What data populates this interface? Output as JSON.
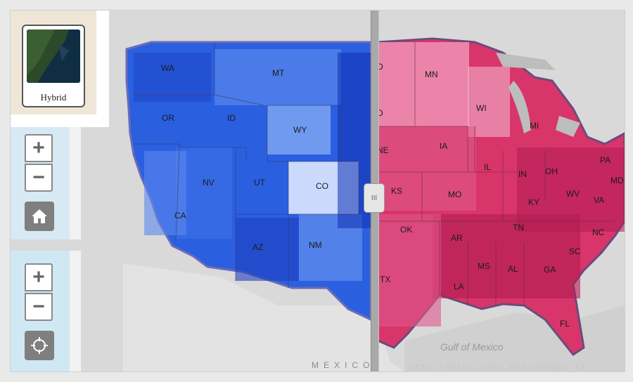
{
  "basemap_toggle": {
    "label": "Hybrid"
  },
  "zoom_top": {
    "plus": "+",
    "minus": "−"
  },
  "zoom_bottom": {
    "plus": "+",
    "minus": "−"
  },
  "icons": {
    "home": "home-icon",
    "locate": "locate-icon",
    "grip": "grip-icon"
  },
  "swipe": {
    "handle_glyph": "III"
  },
  "map": {
    "left_layer_color": "#2a5fe0",
    "right_layer_color": "#d8356a",
    "water_label": "Gulf of Mexico",
    "country_label": "MEXICO",
    "watermark": "http://blog.csdn.net/dregis_li",
    "states_blue": [
      "WA",
      "OR",
      "ID",
      "MT",
      "WY",
      "NV",
      "CA",
      "UT",
      "CO",
      "AZ",
      "NM"
    ],
    "states_red": [
      "MN",
      "WI",
      "MI",
      "IA",
      "NE",
      "IL",
      "IN",
      "OH",
      "PA",
      "MD",
      "KS",
      "MO",
      "KY",
      "WV",
      "VA",
      "OK",
      "AR",
      "TN",
      "NC",
      "SC",
      "TX",
      "MS",
      "AL",
      "GA",
      "LA",
      "FL",
      "D",
      "D"
    ]
  }
}
